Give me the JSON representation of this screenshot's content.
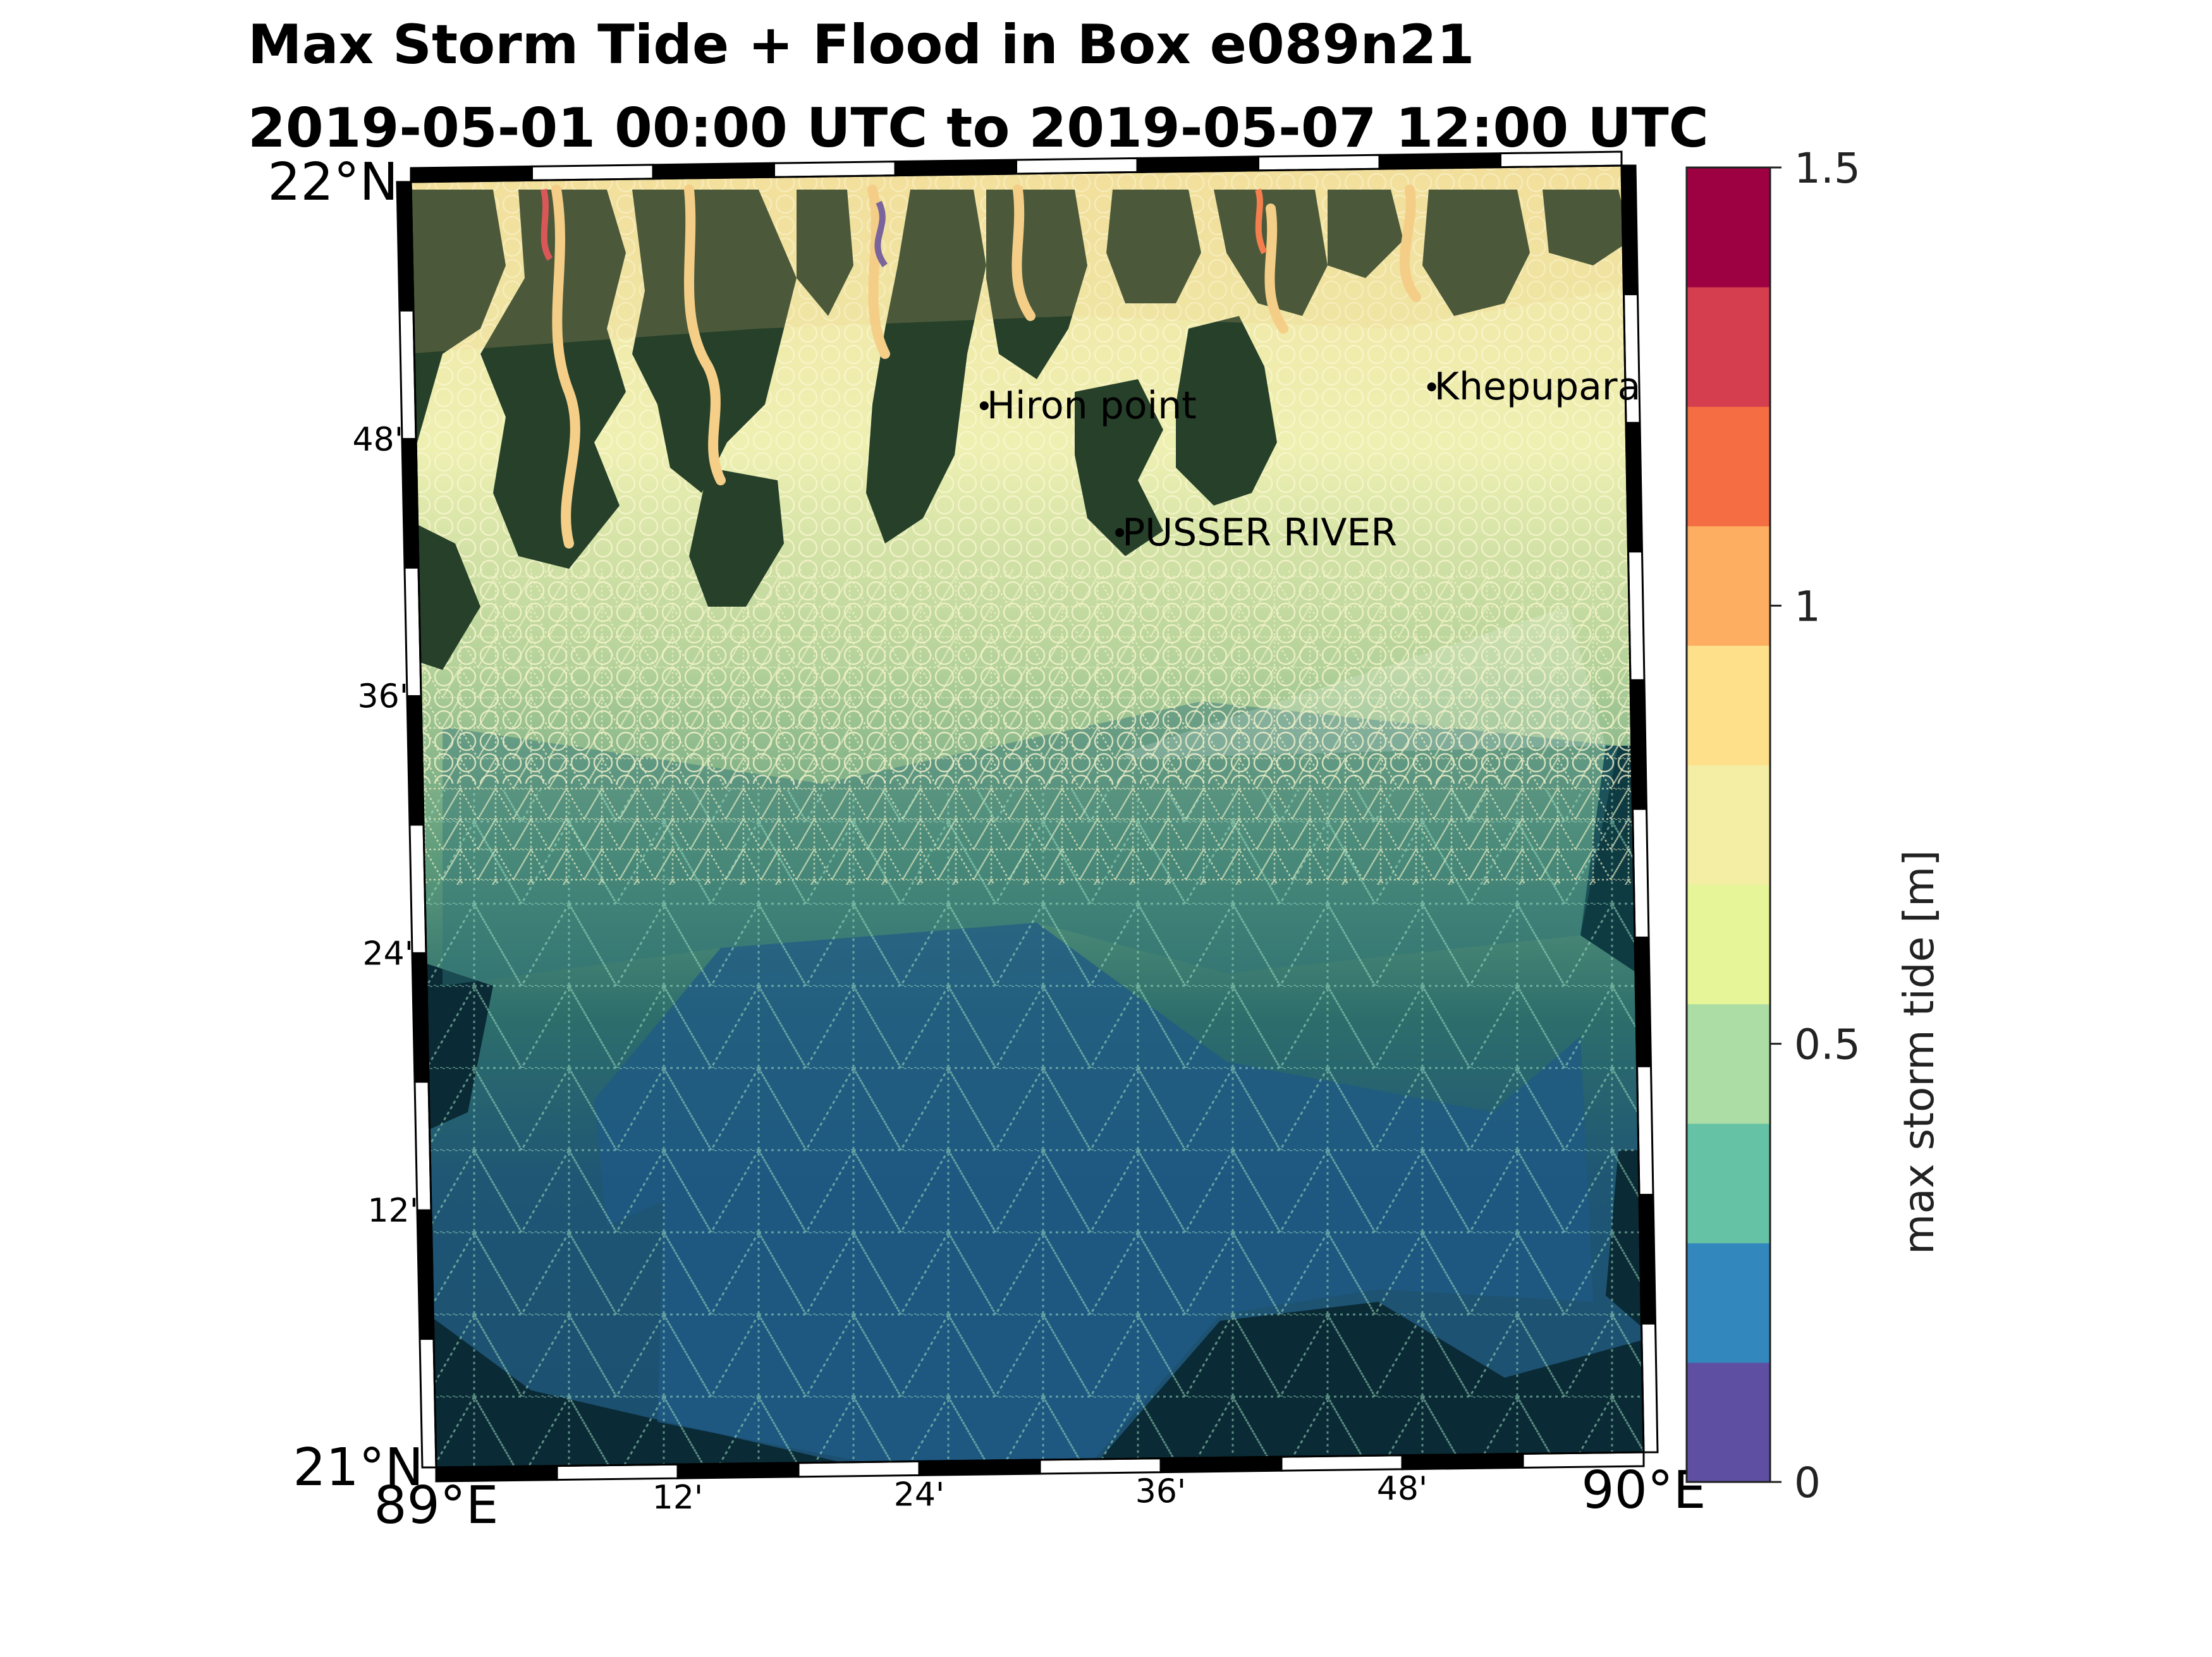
{
  "title": {
    "line1": "Max Storm Tide + Flood in Box e089n21",
    "line2": "2019-05-01 00:00 UTC to 2019-05-07 12:00 UTC"
  },
  "map": {
    "lat_range": [
      21.0,
      22.0
    ],
    "lon_range": [
      89.0,
      90.0
    ],
    "lat_ticks": [
      {
        "value": 22.0,
        "label": "22°N",
        "major": true
      },
      {
        "value": 21.8,
        "label": "48'",
        "major": false
      },
      {
        "value": 21.6,
        "label": "36'",
        "major": false
      },
      {
        "value": 21.4,
        "label": "24'",
        "major": false
      },
      {
        "value": 21.2,
        "label": "12'",
        "major": false
      },
      {
        "value": 21.0,
        "label": "21°N",
        "major": true
      }
    ],
    "lon_ticks": [
      {
        "value": 89.0,
        "label": "89°E",
        "major": true
      },
      {
        "value": 89.2,
        "label": "12'",
        "major": false
      },
      {
        "value": 89.4,
        "label": "24'",
        "major": false
      },
      {
        "value": 89.6,
        "label": "36'",
        "major": false
      },
      {
        "value": 89.8,
        "label": "48'",
        "major": false
      },
      {
        "value": 90.0,
        "label": "90°E",
        "major": true
      }
    ],
    "places": [
      {
        "name": "Hiron point",
        "lon": 89.47,
        "lat": 21.82
      },
      {
        "name": "Khepupara",
        "lon": 89.84,
        "lat": 21.83
      },
      {
        "name": "PUSSER RIVER",
        "lon": 89.58,
        "lat": 21.72
      }
    ],
    "colors": {
      "land": "#26402a",
      "deep_sea": "#0a2a35",
      "river_water": "#f5cf88",
      "mesh_line": "#e8eec0"
    }
  },
  "colorbar": {
    "label": "max storm tide [m]",
    "range": [
      0,
      1.5
    ],
    "ticks": [
      {
        "value": 0,
        "label": "0"
      },
      {
        "value": 0.5,
        "label": "0.5"
      },
      {
        "value": 1.0,
        "label": "1"
      },
      {
        "value": 1.5,
        "label": "1.5"
      }
    ],
    "levels": [
      "#5e4fa2",
      "#3288bd",
      "#66c2a5",
      "#abdda4",
      "#e6f598",
      "#f4eea5",
      "#fee08b",
      "#fdae61",
      "#f46d43",
      "#d53e4f",
      "#9e0142"
    ]
  }
}
